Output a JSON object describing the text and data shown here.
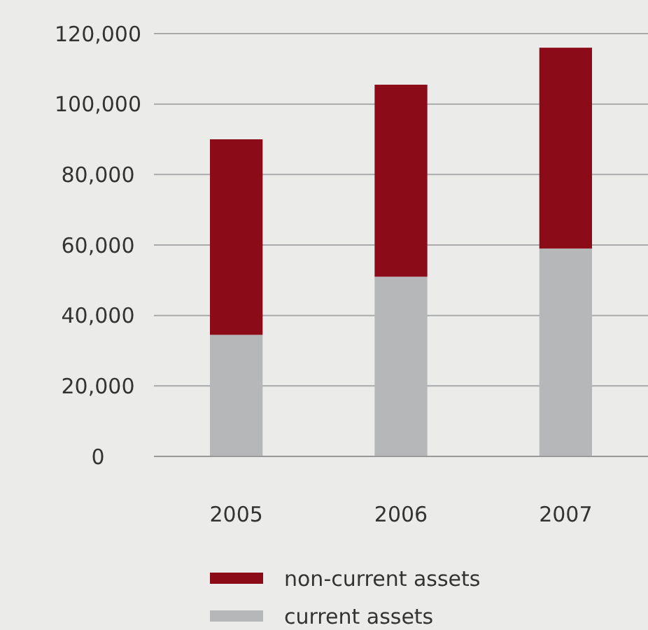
{
  "chart_data": {
    "type": "bar",
    "stacked": true,
    "categories": [
      "2005",
      "2006",
      "2007"
    ],
    "series": [
      {
        "name": "current assets",
        "color": "#b6b7b8",
        "values": [
          34500,
          51000,
          59000
        ]
      },
      {
        "name": "non-current assets",
        "color": "#8c0b19",
        "values": [
          55500,
          54500,
          57000
        ]
      }
    ],
    "ylim": [
      0,
      120000
    ],
    "yticks": [
      {
        "value": 0,
        "label": "0"
      },
      {
        "value": 20000,
        "label": "20,000"
      },
      {
        "value": 40000,
        "label": "40,000"
      },
      {
        "value": 60000,
        "label": "60,000"
      },
      {
        "value": 80000,
        "label": "80,000"
      },
      {
        "value": 100000,
        "label": "100,000"
      },
      {
        "value": 120000,
        "label": "120,000"
      }
    ],
    "grid": "y",
    "legend": "bottom"
  }
}
